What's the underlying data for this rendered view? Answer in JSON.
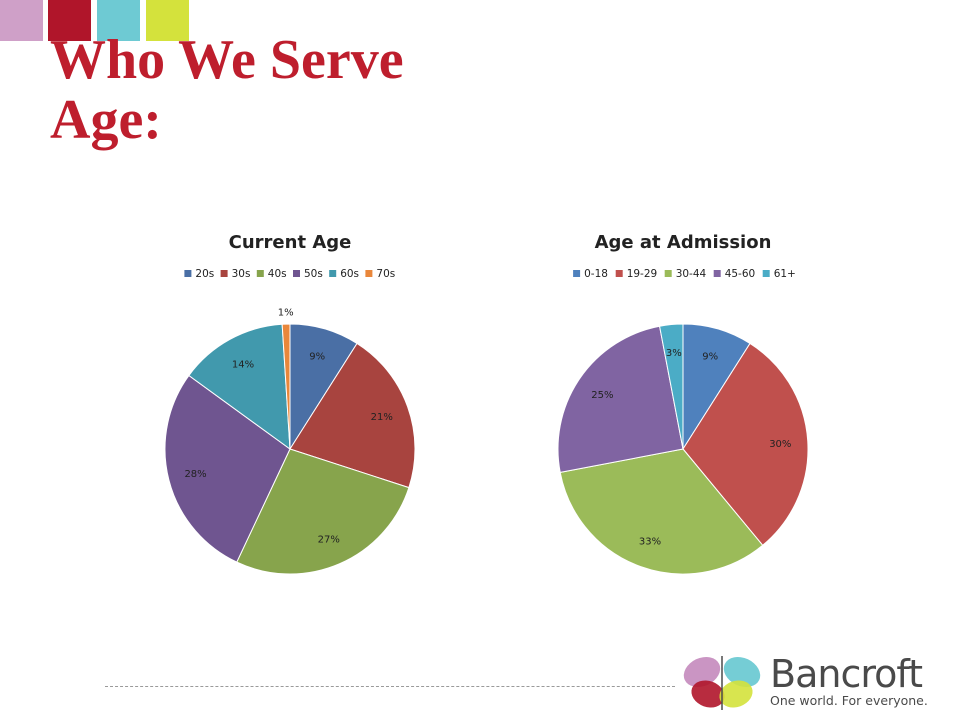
{
  "slide": {
    "title_line1": "Who We Serve",
    "title_line2": "Age:",
    "accent_colors": [
      "#cfa0c8",
      "#b0152a",
      "#6ecad3",
      "#d4e23c"
    ]
  },
  "brand": {
    "name": "Bancroft",
    "tagline": "One world. For everyone."
  },
  "chart_data": [
    {
      "type": "pie",
      "title": "Current Age",
      "legend_position": "top",
      "categories": [
        "20s",
        "30s",
        "40s",
        "50s",
        "60s",
        "70s"
      ],
      "values": [
        9,
        21,
        27,
        28,
        14,
        1
      ],
      "labels": [
        "9%",
        "21%",
        "27%",
        "28%",
        "14%",
        "1%"
      ],
      "colors": [
        "#4a6fa5",
        "#a8443f",
        "#87a44c",
        "#6f5590",
        "#4199ad",
        "#e9873b"
      ]
    },
    {
      "type": "pie",
      "title": "Age at Admission",
      "legend_position": "top",
      "categories": [
        "0-18",
        "19-29",
        "30-44",
        "45-60",
        "61+"
      ],
      "values": [
        9,
        30,
        33,
        25,
        3
      ],
      "labels": [
        "9%",
        "30%",
        "33%",
        "25%",
        "3%"
      ],
      "colors": [
        "#4f81bd",
        "#c0504d",
        "#9bbb59",
        "#8064a2",
        "#4bacc6"
      ]
    }
  ]
}
